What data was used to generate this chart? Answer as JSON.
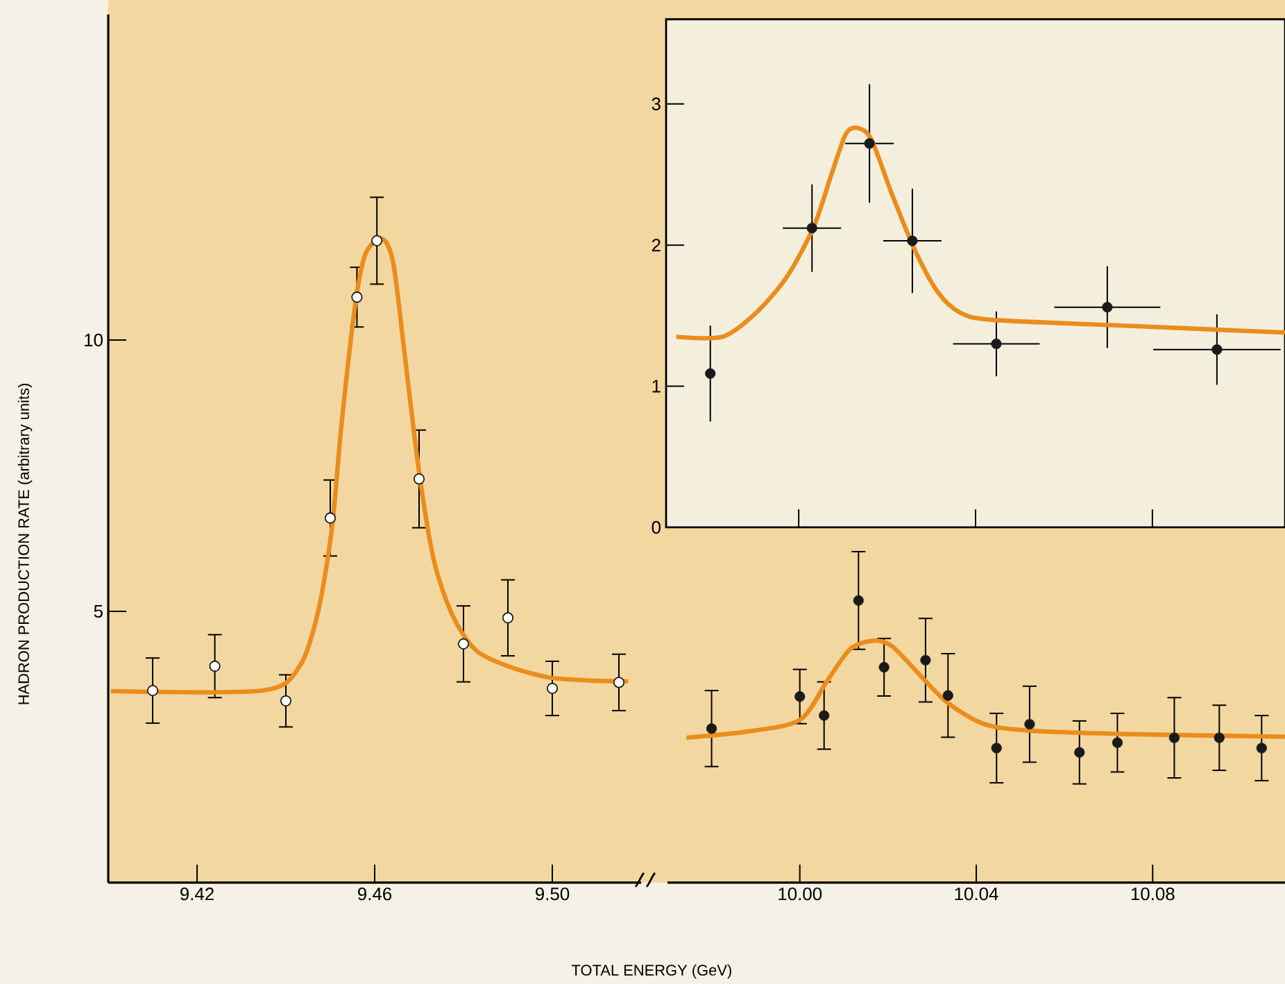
{
  "chart_data": [
    {
      "type": "scatter",
      "xlabel": "TOTAL ENERGY (GeV)",
      "ylabel": "HADRON PRODUCTION RATE (arbitrary units)",
      "xlim": [
        9.4,
        9.52
      ],
      "ylim": [
        0,
        16
      ],
      "xticks": [
        9.42,
        9.46,
        {
          "value": 9.5,
          "label": "9.50"
        }
      ],
      "yticks": [
        5,
        10
      ],
      "marker": "circle",
      "series": [
        {
          "color": "#1a1a1a",
          "x": [
            9.41,
            9.424,
            9.44,
            9.45,
            9.456,
            9.4605,
            9.47,
            9.48,
            9.49,
            9.5,
            9.515
          ],
          "values": [
            3.54,
            3.99,
            3.35,
            6.72,
            10.79,
            11.83,
            7.44,
            4.4,
            4.88,
            3.58,
            3.69
          ],
          "errors": [
            0.6,
            0.58,
            0.48,
            0.7,
            0.55,
            0.8,
            0.9,
            0.7,
            0.7,
            0.5,
            0.52
          ]
        },
        {
          "type": "line",
          "marker": "none",
          "color": "#e98d1c",
          "x": [
            9.4006,
            9.4348,
            9.4431,
            9.4473,
            9.4504,
            9.4525,
            9.4556,
            9.4579,
            9.4616,
            9.4642,
            9.4668,
            9.47,
            9.4733,
            9.4775,
            9.4827,
            9.49,
            9.4994,
            9.5098,
            9.5171
          ],
          "values": [
            3.53,
            3.54,
            3.99,
            5.01,
            6.55,
            8.42,
            10.64,
            11.58,
            11.87,
            11.41,
            9.7,
            7.57,
            5.95,
            4.93,
            4.29,
            3.99,
            3.78,
            3.72,
            3.71
          ]
        }
      ]
    },
    {
      "type": "scatter",
      "xlim": [
        9.97,
        10.11
      ],
      "ylim": [
        0,
        16
      ],
      "tick_labels": "x",
      "xticks": [
        {
          "value": 10.0,
          "label": "10.00"
        },
        10.04,
        10.08
      ],
      "marker": "circle",
      "series": [
        {
          "color": "#1a1a1a",
          "x": [
            9.98,
            10.0,
            10.0055,
            10.0133,
            10.0191,
            10.0285,
            10.0336,
            10.0446,
            10.0521,
            10.0634,
            10.072,
            10.0849,
            10.0951,
            10.1047
          ],
          "values": [
            2.84,
            3.43,
            3.08,
            5.2,
            3.97,
            4.1,
            3.45,
            2.48,
            2.92,
            2.4,
            2.58,
            2.67,
            2.67,
            2.48
          ],
          "errors": [
            0.7,
            0.5,
            0.62,
            0.9,
            0.53,
            0.77,
            0.77,
            0.64,
            0.7,
            0.58,
            0.54,
            0.74,
            0.6,
            0.6
          ]
        },
        {
          "type": "line",
          "marker": "none",
          "color": "#e98d1c",
          "x": [
            9.9743,
            9.9895,
            10.0002,
            10.0063,
            10.0115,
            10.0168,
            10.021,
            10.0273,
            10.0336,
            10.0419,
            10.0524,
            10.0734,
            10.11
          ],
          "values": [
            2.67,
            2.8,
            3.01,
            3.73,
            4.31,
            4.46,
            4.35,
            3.82,
            3.31,
            2.92,
            2.8,
            2.74,
            2.69
          ]
        }
      ]
    },
    {
      "type": "scatter",
      "xlim": [
        9.97,
        10.11
      ],
      "ylim": [
        0,
        3.6
      ],
      "tick_labels": "y",
      "xticks": [
        {
          "value": 10.0,
          "label": null
        },
        {
          "value": 10.04,
          "label": null
        },
        {
          "value": 10.08,
          "label": null
        }
      ],
      "yticks": [
        0,
        1,
        2,
        3
      ],
      "marker": "circle",
      "series": [
        {
          "color": "#1a1a1a",
          "x": [
            9.98,
            10.003,
            10.016,
            10.0257,
            10.0447,
            10.0698,
            10.0946
          ],
          "values": [
            1.09,
            2.12,
            2.72,
            2.03,
            1.3,
            1.56,
            1.26
          ],
          "errors": [
            0.34,
            0.31,
            0.42,
            0.37,
            0.23,
            0.29,
            0.25
          ],
          "xerrors": [
            null,
            0.0066,
            0.0055,
            0.0066,
            0.0098,
            0.012,
            0.0144
          ]
        },
        {
          "type": "line",
          "marker": "none",
          "color": "#e98d1c",
          "x": [
            9.9723,
            9.9827,
            9.99,
            9.9972,
            10.0034,
            10.0076,
            10.0107,
            10.0133,
            10.0164,
            10.0211,
            10.0262,
            10.0314,
            10.0366,
            10.0439,
            10.0729,
            10.11
          ],
          "values": [
            1.35,
            1.35,
            1.51,
            1.77,
            2.13,
            2.52,
            2.79,
            2.83,
            2.75,
            2.36,
            1.97,
            1.67,
            1.52,
            1.47,
            1.43,
            1.38
          ]
        }
      ]
    }
  ]
}
